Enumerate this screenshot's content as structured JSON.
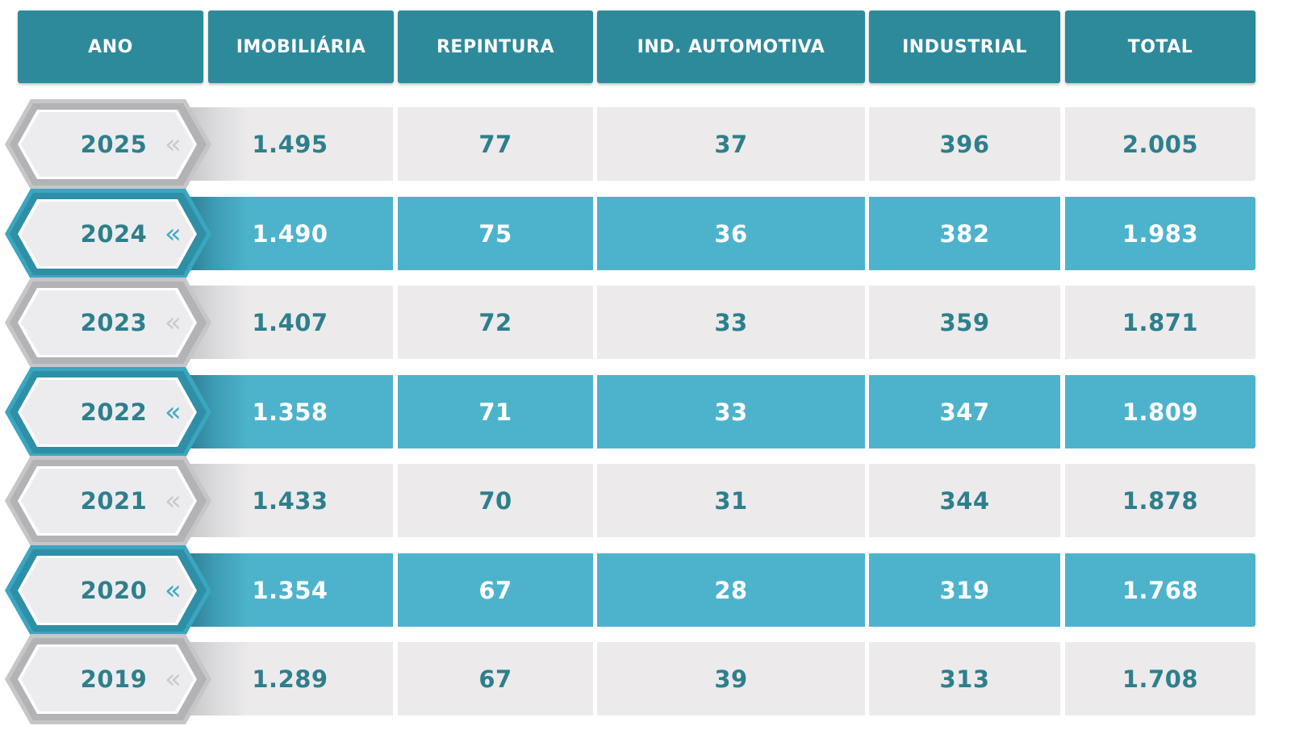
{
  "chart_data": {
    "type": "table",
    "columns": [
      "ANO",
      "IMOBILIÁRIA",
      "REPINTURA",
      "IND. AUTOMOTIVA",
      "INDUSTRIAL",
      "TOTAL"
    ],
    "rows": [
      {
        "year": "2025",
        "values": [
          "1.495",
          "77",
          "37",
          "396",
          "2.005"
        ],
        "style": "light"
      },
      {
        "year": "2024",
        "values": [
          "1.490",
          "75",
          "36",
          "382",
          "1.983"
        ],
        "style": "teal"
      },
      {
        "year": "2023",
        "values": [
          "1.407",
          "72",
          "33",
          "359",
          "1.871"
        ],
        "style": "light"
      },
      {
        "year": "2022",
        "values": [
          "1.358",
          "71",
          "33",
          "347",
          "1.809"
        ],
        "style": "teal"
      },
      {
        "year": "2021",
        "values": [
          "1.433",
          "70",
          "31",
          "344",
          "1.878"
        ],
        "style": "light"
      },
      {
        "year": "2020",
        "values": [
          "1.354",
          "67",
          "28",
          "319",
          "1.768"
        ],
        "style": "teal"
      },
      {
        "year": "2019",
        "values": [
          "1.289",
          "67",
          "39",
          "313",
          "1.708"
        ],
        "style": "light"
      }
    ],
    "colors": {
      "header": "#2d8a9b",
      "teal_row": "#4db3cc",
      "light_row": "#eceaeb",
      "value_text": "#2e7f8c"
    },
    "icons": {
      "year_arrow": "double-chevron-left-icon"
    }
  }
}
